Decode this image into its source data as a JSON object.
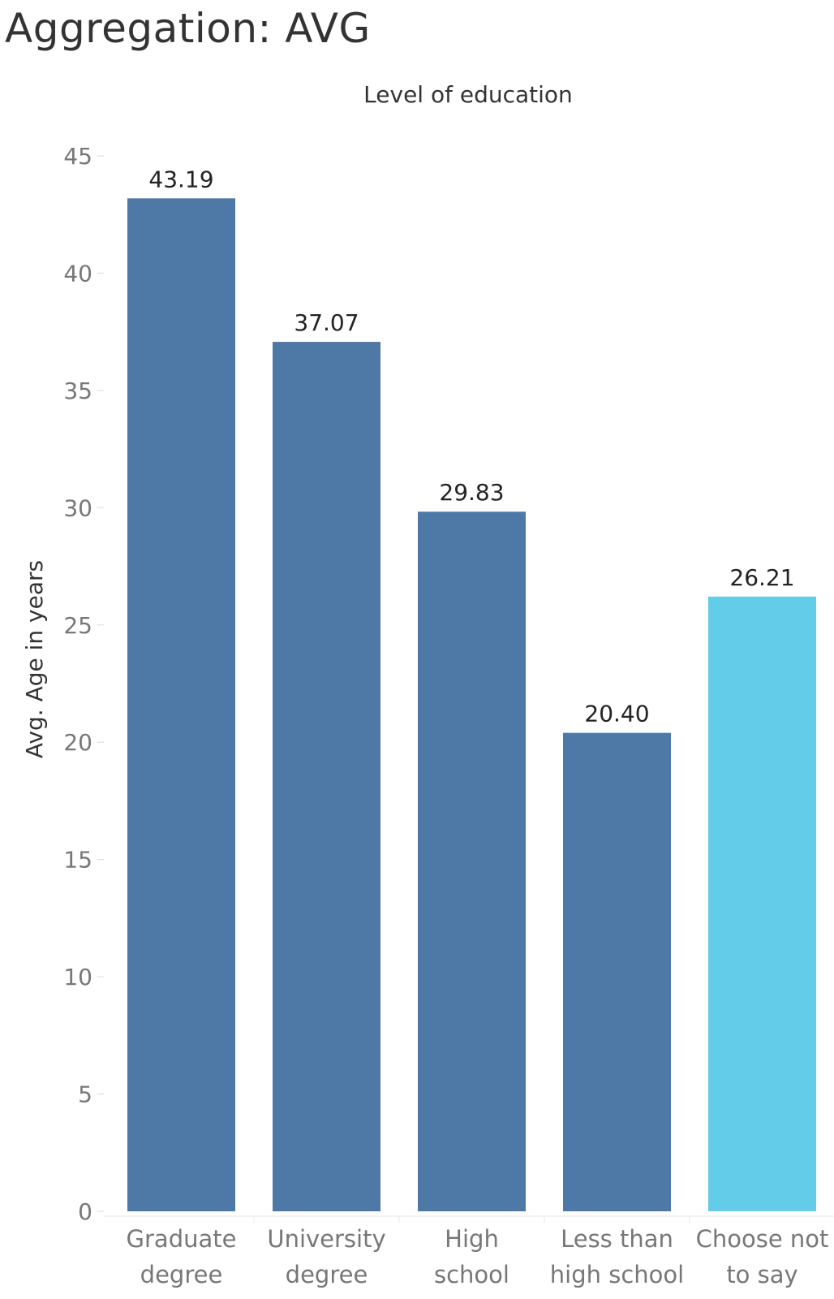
{
  "page_title": "Aggregation: AVG",
  "colors": {
    "bar_default": "#4e79a7",
    "bar_highlight": "#63cce9",
    "tick_text": "#777777",
    "title_text": "#333333"
  },
  "chart_data": {
    "type": "bar",
    "title": "",
    "column_header": "Level of education",
    "xlabel": "",
    "ylabel": "Avg. Age in years",
    "ylim": [
      0,
      45
    ],
    "yticks": [
      0,
      5,
      10,
      15,
      20,
      25,
      30,
      35,
      40,
      45
    ],
    "categories": [
      [
        "Graduate",
        "degree"
      ],
      [
        "University",
        "degree"
      ],
      [
        "High",
        "school"
      ],
      [
        "Less than",
        "high school"
      ],
      [
        "Choose not",
        "to say"
      ]
    ],
    "values": [
      43.19,
      37.07,
      29.83,
      20.4,
      26.21
    ],
    "value_labels": [
      "43.19",
      "37.07",
      "29.83",
      "20.40",
      "26.21"
    ],
    "bar_colors": [
      "#4e79a7",
      "#4e79a7",
      "#4e79a7",
      "#4e79a7",
      "#63cce9"
    ],
    "grid": false,
    "legend": "none"
  }
}
